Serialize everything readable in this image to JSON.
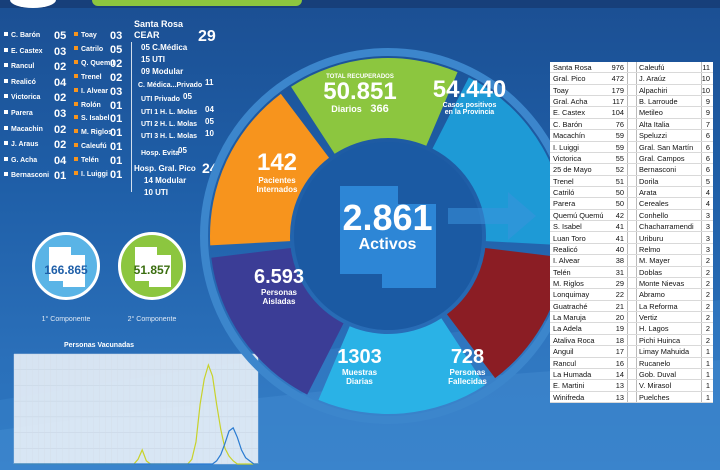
{
  "colors": {
    "background": "#1f5fa8",
    "green": "#8cc63f",
    "blue": "#1e9ad6",
    "orange": "#f7941d",
    "purple": "#3b3d96",
    "sky": "#2ab2e6",
    "maroon": "#8b1d24"
  },
  "left_list": [
    {
      "name": "C. Barón",
      "value": "05"
    },
    {
      "name": "E. Castex",
      "value": "03"
    },
    {
      "name": "Rancul",
      "value": "02"
    },
    {
      "name": "Realicó",
      "value": "04"
    },
    {
      "name": "Victorica",
      "value": "02"
    },
    {
      "name": "Parera",
      "value": "03"
    },
    {
      "name": "Macachin",
      "value": "02"
    },
    {
      "name": "J. Araus",
      "value": "02"
    },
    {
      "name": "G. Acha",
      "value": "04"
    },
    {
      "name": "Bernasconi",
      "value": "01"
    }
  ],
  "mid_list": [
    {
      "name": "Toay",
      "value": "03"
    },
    {
      "name": "Catrilo",
      "value": "05"
    },
    {
      "name": "Q. Quemú",
      "value": "02"
    },
    {
      "name": "Trenel",
      "value": "02"
    },
    {
      "name": "I. Alvear",
      "value": "03"
    },
    {
      "name": "Rolón",
      "value": "01"
    },
    {
      "name": "S. Isabel",
      "value": "01"
    },
    {
      "name": "M. Riglos",
      "value": "01"
    },
    {
      "name": "Caleufú",
      "value": "01"
    },
    {
      "name": "Telén",
      "value": "01"
    },
    {
      "name": "I. Luiggi",
      "value": "01"
    }
  ],
  "hospitals": {
    "santa_rosa": "Santa Rosa",
    "cear": "CEAR",
    "cear_total": "29",
    "cear_lines": [
      "05 C.Médica",
      "15 UTI",
      "09 Modular"
    ],
    "privado_label": "C. Médica...Privado",
    "privado_value": "11",
    "uti_privado_label": "UTI Privado",
    "uti_privado_value": "05",
    "molas": [
      {
        "label": "UTI 1 H. L. Molas",
        "value": "04"
      },
      {
        "label": "UTI 2 H. L. Molas",
        "value": "05"
      },
      {
        "label": "UTI 3 H. L. Molas",
        "value": "10"
      }
    ],
    "evita_label": "Hosp. Evita",
    "evita_value": "05",
    "pico_label": "Hosp. Gral. Pico",
    "pico_value": "24",
    "pico_lines": [
      "14 Modular",
      "10 UTI"
    ]
  },
  "components": [
    {
      "value": "166.865",
      "label": "1° Componente"
    },
    {
      "value": "51.857",
      "label": "2° Componente"
    }
  ],
  "vaccine_chart": {
    "title": "Personas Vacunadas",
    "chart_data": {
      "type": "line",
      "title": "Personas Vacunadas",
      "series": [
        {
          "values": [
            0,
            0,
            0,
            0,
            0,
            0,
            0,
            0,
            0,
            0,
            0,
            0,
            0,
            0,
            0,
            0,
            0,
            0,
            0,
            0,
            0,
            0,
            0,
            0,
            0,
            0,
            0,
            0,
            0,
            0,
            300,
            900,
            200,
            0,
            0,
            0,
            0,
            0,
            0,
            0,
            0,
            0,
            0,
            300,
            1400,
            3800,
            5400,
            6300,
            5600,
            3800,
            2200,
            1000,
            500,
            200,
            0,
            0,
            0,
            0,
            0,
            0
          ]
        },
        {
          "values": [
            0,
            0,
            0,
            0,
            0,
            0,
            0,
            0,
            0,
            0,
            0,
            0,
            0,
            0,
            0,
            0,
            0,
            0,
            0,
            0,
            0,
            0,
            0,
            0,
            0,
            0,
            0,
            0,
            0,
            0,
            0,
            0,
            0,
            0,
            0,
            0,
            0,
            0,
            0,
            0,
            0,
            0,
            0,
            0,
            0,
            0,
            0,
            0,
            0,
            200,
            600,
            1300,
            2100,
            2300,
            1700,
            900,
            400,
            200,
            0,
            0
          ]
        }
      ]
    }
  },
  "center": {
    "value": "2.861",
    "label": "Activos"
  },
  "segments": {
    "recuperados": {
      "title": "TOTAL RECUPERADOS",
      "value": "50.851",
      "sub_label": "Diarios",
      "sub_value": "366"
    },
    "positivos": {
      "value": "54.440",
      "line1": "Casos positivos",
      "line2": "en la Provincia"
    },
    "internados": {
      "value": "142",
      "line1": "Pacientes",
      "line2": "Internados"
    },
    "aisladas": {
      "value": "6.593",
      "line1": "Personas",
      "line2": "Aisladas"
    },
    "muestras": {
      "value": "1303",
      "line1": "Muestras",
      "line2": "Diarias"
    },
    "fallecidas": {
      "value": "728",
      "line1": "Personas",
      "line2": "Fallecidas"
    }
  },
  "table": {
    "left": [
      {
        "name": "Santa Rosa",
        "value": "976"
      },
      {
        "name": "Gral. Pico",
        "value": "472"
      },
      {
        "name": "Toay",
        "value": "179"
      },
      {
        "name": "Gral. Acha",
        "value": "117"
      },
      {
        "name": "E. Castex",
        "value": "104"
      },
      {
        "name": "C. Barón",
        "value": "76"
      },
      {
        "name": "Macachín",
        "value": "59"
      },
      {
        "name": "I. Luiggi",
        "value": "59"
      },
      {
        "name": "Victorica",
        "value": "55"
      },
      {
        "name": "25 de Mayo",
        "value": "52"
      },
      {
        "name": "Trenel",
        "value": "51"
      },
      {
        "name": "Catriló",
        "value": "50"
      },
      {
        "name": "Parera",
        "value": "50"
      },
      {
        "name": "Quemú Quemú",
        "value": "42"
      },
      {
        "name": "S. Isabel",
        "value": "41"
      },
      {
        "name": "Luan Toro",
        "value": "41"
      },
      {
        "name": "Realicó",
        "value": "40"
      },
      {
        "name": "I. Alvear",
        "value": "38"
      },
      {
        "name": "Telén",
        "value": "31"
      },
      {
        "name": "M. Riglos",
        "value": "29"
      },
      {
        "name": "Lonquimay",
        "value": "22"
      },
      {
        "name": "Guatraché",
        "value": "21"
      },
      {
        "name": "La Maruja",
        "value": "20"
      },
      {
        "name": "La Adela",
        "value": "19"
      },
      {
        "name": "Ataliva Roca",
        "value": "18"
      },
      {
        "name": "Anguil",
        "value": "17"
      },
      {
        "name": "Rancul",
        "value": "16"
      },
      {
        "name": "La Humada",
        "value": "14"
      },
      {
        "name": "E. Martini",
        "value": "13"
      },
      {
        "name": "Winifreda",
        "value": "13"
      }
    ],
    "right": [
      {
        "name": "Caleufú",
        "value": "11"
      },
      {
        "name": "J. Araúz",
        "value": "10"
      },
      {
        "name": "Alpachiri",
        "value": "10"
      },
      {
        "name": "B. Larroude",
        "value": "9"
      },
      {
        "name": "Metileo",
        "value": "9"
      },
      {
        "name": "Alta Italia",
        "value": "7"
      },
      {
        "name": "Speluzzi",
        "value": "6"
      },
      {
        "name": "Gral. San Martín",
        "value": "6"
      },
      {
        "name": "Gral. Campos",
        "value": "6"
      },
      {
        "name": "Bernasconi",
        "value": "6"
      },
      {
        "name": "Dorila",
        "value": "5"
      },
      {
        "name": "Arata",
        "value": "4"
      },
      {
        "name": "Cereales",
        "value": "4"
      },
      {
        "name": "Conhello",
        "value": "3"
      },
      {
        "name": "Chacharramendi",
        "value": "3"
      },
      {
        "name": "Uriburu",
        "value": "3"
      },
      {
        "name": "Relmo",
        "value": "3"
      },
      {
        "name": "M. Mayer",
        "value": "2"
      },
      {
        "name": "Doblas",
        "value": "2"
      },
      {
        "name": "Monte Nievas",
        "value": "2"
      },
      {
        "name": "Abramo",
        "value": "2"
      },
      {
        "name": "La Reforma",
        "value": "2"
      },
      {
        "name": "Vertiz",
        "value": "2"
      },
      {
        "name": "H. Lagos",
        "value": "2"
      },
      {
        "name": "Pichi Huinca",
        "value": "2"
      },
      {
        "name": "Limay Mahuida",
        "value": "1"
      },
      {
        "name": "Rucanelo",
        "value": "1"
      },
      {
        "name": "Gob. Duval",
        "value": "1"
      },
      {
        "name": "V. Mirasol",
        "value": "1"
      },
      {
        "name": "Puelches",
        "value": "1"
      }
    ]
  }
}
